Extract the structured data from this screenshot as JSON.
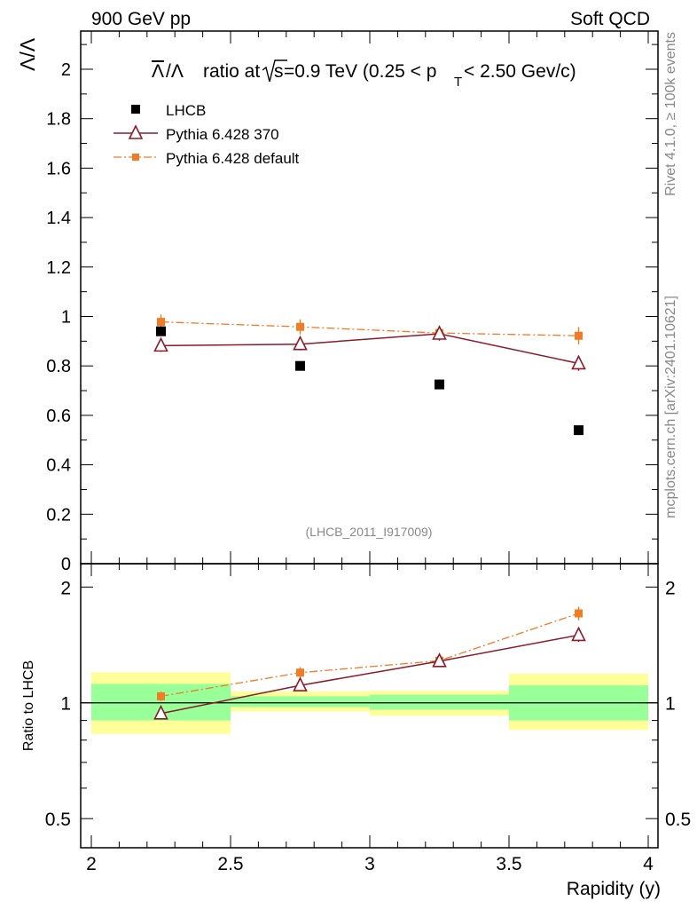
{
  "header": {
    "left": "900 GeV pp",
    "right": "Soft QCD"
  },
  "side": {
    "rivet": "Rivet 4.1.0, ≥ 100k events",
    "mcplots": "mcplots.cern.ch [arXiv:2401.10621]"
  },
  "chart_data": {
    "type": "scatter",
    "title": {
      "a": "ratio at",
      "b": "s",
      "c": "=0.9 TeV (0.25 < p",
      "d": "T",
      "e": " < 2.50 Gev/c)"
    },
    "ylabel": "Λ/Λ",
    "xlabel": "Rapidity (y)",
    "ratio_ylabel": "Ratio to LHCB",
    "analysis_id": "(LHCB_2011_I917009)",
    "xlim": [
      2,
      4
    ],
    "ylim": [
      0,
      2.15
    ],
    "x_ticks": [
      "2",
      "2.5",
      "3",
      "3.5",
      "4"
    ],
    "y_ticks": [
      "0",
      "0.2",
      "0.4",
      "0.6",
      "0.8",
      "1",
      "1.2",
      "1.4",
      "1.6",
      "1.8",
      "2"
    ],
    "ratio_ylim": [
      0.42,
      2.3
    ],
    "ratio_ticks": [
      "0.5",
      "1",
      "2"
    ],
    "bins": [
      [
        2.0,
        2.5
      ],
      [
        2.5,
        3.0
      ],
      [
        3.0,
        3.5
      ],
      [
        3.5,
        4.0
      ]
    ],
    "x": [
      2.25,
      2.75,
      3.25,
      3.75
    ],
    "series": [
      {
        "name": "LHCB",
        "values": [
          0.94,
          0.8,
          0.725,
          0.54
        ],
        "color": "#000000",
        "marker": "square"
      },
      {
        "name": "Pythia 6.428 370",
        "values": [
          0.882,
          0.888,
          0.93,
          0.81
        ],
        "errors": [
          0.025,
          0.025,
          0.028,
          0.03
        ],
        "ratio": [
          0.938,
          1.11,
          1.283,
          1.5
        ],
        "ratio_errors": [
          0.025,
          0.03,
          0.04,
          0.06
        ],
        "color": "#8b1a2b",
        "marker": "open-triangle"
      },
      {
        "name": "Pythia 6.428 default",
        "values": [
          0.978,
          0.958,
          0.933,
          0.922
        ],
        "errors": [
          0.03,
          0.03,
          0.03,
          0.035
        ],
        "ratio": [
          1.04,
          1.198,
          1.287,
          1.708
        ],
        "ratio_errors": [
          0.03,
          0.04,
          0.04,
          0.07
        ],
        "color": "#f07c26",
        "marker": "filled-square"
      }
    ],
    "ratio_band_inner": [
      [
        0.9,
        1.12
      ],
      [
        0.975,
        1.04
      ],
      [
        0.96,
        1.05
      ],
      [
        0.9,
        1.11
      ]
    ],
    "ratio_band_outer": [
      [
        0.83,
        1.2
      ],
      [
        0.95,
        1.07
      ],
      [
        0.925,
        1.075
      ],
      [
        0.85,
        1.19
      ]
    ],
    "band_colors": {
      "inner": "#99ff99",
      "outer": "#ffff99"
    }
  }
}
